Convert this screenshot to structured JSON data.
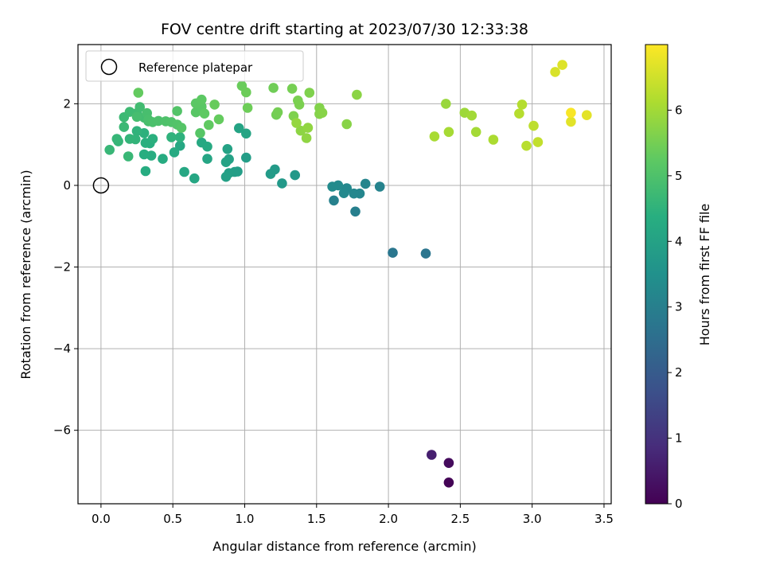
{
  "chart_data": {
    "type": "scatter",
    "title": "FOV centre drift starting at 2023/07/30 12:33:38",
    "xlabel": "Angular distance from reference (arcmin)",
    "ylabel": "Rotation from reference (arcmin)",
    "colorbar_label": "Hours from first FF file",
    "colormap": "viridis",
    "xlim": [
      -0.16,
      3.55
    ],
    "ylim": [
      -7.8,
      3.45
    ],
    "clim": [
      0,
      7
    ],
    "grid": true,
    "legend_position": "top-left",
    "xticks": [
      0.0,
      0.5,
      1.0,
      1.5,
      2.0,
      2.5,
      3.0,
      3.5
    ],
    "xtick_labels": [
      "0.0",
      "0.5",
      "1.0",
      "1.5",
      "2.0",
      "2.5",
      "3.0",
      "3.5"
    ],
    "yticks": [
      2,
      0,
      -2,
      -4,
      -6
    ],
    "ytick_labels": [
      "2",
      "0",
      "−2",
      "−4",
      "−6"
    ],
    "cticks": [
      0,
      1,
      2,
      3,
      4,
      5,
      6
    ],
    "ctick_labels": [
      "0",
      "1",
      "2",
      "3",
      "4",
      "5",
      "6"
    ],
    "reference": {
      "label": "Reference platepar",
      "x": 0.0,
      "y": 0.0
    },
    "points": [
      [
        2.42,
        -7.28,
        0.05
      ],
      [
        2.42,
        -6.8,
        0.2
      ],
      [
        2.3,
        -6.6,
        0.6
      ],
      [
        2.26,
        -1.67,
        2.7
      ],
      [
        2.03,
        -1.65,
        2.75
      ],
      [
        1.77,
        -0.64,
        3.0
      ],
      [
        1.62,
        -0.37,
        3.05
      ],
      [
        1.94,
        -0.03,
        3.1
      ],
      [
        1.84,
        0.04,
        3.15
      ],
      [
        1.8,
        -0.2,
        3.2
      ],
      [
        1.76,
        -0.2,
        3.22
      ],
      [
        1.71,
        -0.07,
        3.25
      ],
      [
        1.69,
        -0.19,
        3.28
      ],
      [
        1.65,
        0.0,
        3.3
      ],
      [
        1.61,
        -0.03,
        3.33
      ],
      [
        1.35,
        0.25,
        3.7
      ],
      [
        1.26,
        0.05,
        3.75
      ],
      [
        1.21,
        0.39,
        3.78
      ],
      [
        1.18,
        0.28,
        3.8
      ],
      [
        1.01,
        0.68,
        3.85
      ],
      [
        0.95,
        0.34,
        3.88
      ],
      [
        0.93,
        0.33,
        3.9
      ],
      [
        0.89,
        0.3,
        3.92
      ],
      [
        0.87,
        0.21,
        3.95
      ],
      [
        0.89,
        0.64,
        3.97
      ],
      [
        0.88,
        0.89,
        4.0
      ],
      [
        0.87,
        0.57,
        4.02
      ],
      [
        0.96,
        1.4,
        4.05
      ],
      [
        1.01,
        1.27,
        4.08
      ],
      [
        0.74,
        0.65,
        4.1
      ],
      [
        0.65,
        0.17,
        4.12
      ],
      [
        0.58,
        0.33,
        4.15
      ],
      [
        0.55,
        0.97,
        4.17
      ],
      [
        0.7,
        1.05,
        4.2
      ],
      [
        0.74,
        0.95,
        4.22
      ],
      [
        0.51,
        0.81,
        4.25
      ],
      [
        0.43,
        0.65,
        4.27
      ],
      [
        0.31,
        0.35,
        4.3
      ],
      [
        0.35,
        0.73,
        4.32
      ],
      [
        0.3,
        0.76,
        4.35
      ],
      [
        0.34,
        1.03,
        4.37
      ],
      [
        0.31,
        1.04,
        4.4
      ],
      [
        0.36,
        1.14,
        4.42
      ],
      [
        0.3,
        1.28,
        4.45
      ],
      [
        0.55,
        1.18,
        4.47
      ],
      [
        0.49,
        1.18,
        4.5
      ],
      [
        0.25,
        1.33,
        4.52
      ],
      [
        0.24,
        1.13,
        4.55
      ],
      [
        0.2,
        1.14,
        4.57
      ],
      [
        0.12,
        1.08,
        4.6
      ],
      [
        0.11,
        1.14,
        4.62
      ],
      [
        0.06,
        0.87,
        4.65
      ],
      [
        0.19,
        0.71,
        4.67
      ],
      [
        0.16,
        1.43,
        4.7
      ],
      [
        0.16,
        1.67,
        4.72
      ],
      [
        0.2,
        1.8,
        4.75
      ],
      [
        0.25,
        1.77,
        4.77
      ],
      [
        0.27,
        1.92,
        4.8
      ],
      [
        0.3,
        1.66,
        4.82
      ],
      [
        0.33,
        1.57,
        4.85
      ],
      [
        0.25,
        1.68,
        4.87
      ],
      [
        0.32,
        1.77,
        4.9
      ],
      [
        0.33,
        1.61,
        4.92
      ],
      [
        0.36,
        1.55,
        4.95
      ],
      [
        0.4,
        1.58,
        4.97
      ],
      [
        0.45,
        1.57,
        5.0
      ],
      [
        0.49,
        1.55,
        5.02
      ],
      [
        0.53,
        1.49,
        5.05
      ],
      [
        0.53,
        1.82,
        5.07
      ],
      [
        0.56,
        1.41,
        5.1
      ],
      [
        0.69,
        1.28,
        5.12
      ],
      [
        0.66,
        1.79,
        5.15
      ],
      [
        0.7,
        1.93,
        5.17
      ],
      [
        0.66,
        2.01,
        5.2
      ],
      [
        0.7,
        2.1,
        5.22
      ],
      [
        0.72,
        1.76,
        5.25
      ],
      [
        0.75,
        1.48,
        5.27
      ],
      [
        0.26,
        2.27,
        5.3
      ],
      [
        0.82,
        1.62,
        5.32
      ],
      [
        0.79,
        1.98,
        5.35
      ],
      [
        0.98,
        2.44,
        5.37
      ],
      [
        1.01,
        2.28,
        5.4
      ],
      [
        1.02,
        1.9,
        5.42
      ],
      [
        1.2,
        2.39,
        5.45
      ],
      [
        1.22,
        1.73,
        5.47
      ],
      [
        1.23,
        1.79,
        5.5
      ],
      [
        1.33,
        2.37,
        5.52
      ],
      [
        1.37,
        2.08,
        5.55
      ],
      [
        1.38,
        1.98,
        5.57
      ],
      [
        1.34,
        1.7,
        5.6
      ],
      [
        1.45,
        2.27,
        5.62
      ],
      [
        1.52,
        1.9,
        5.65
      ],
      [
        1.52,
        1.75,
        5.67
      ],
      [
        1.54,
        1.78,
        5.7
      ],
      [
        1.71,
        1.5,
        5.72
      ],
      [
        1.78,
        2.22,
        5.75
      ],
      [
        1.39,
        1.34,
        5.77
      ],
      [
        1.43,
        1.16,
        5.8
      ],
      [
        1.44,
        1.41,
        5.82
      ],
      [
        1.36,
        1.53,
        5.85
      ],
      [
        2.4,
        2.0,
        5.9
      ],
      [
        2.53,
        1.78,
        5.95
      ],
      [
        2.58,
        1.71,
        6.0
      ],
      [
        2.61,
        1.31,
        6.02
      ],
      [
        2.42,
        1.31,
        6.05
      ],
      [
        2.32,
        1.2,
        6.07
      ],
      [
        2.73,
        1.12,
        6.1
      ],
      [
        2.93,
        1.98,
        6.2
      ],
      [
        2.91,
        1.76,
        6.22
      ],
      [
        2.96,
        0.97,
        6.25
      ],
      [
        3.01,
        1.46,
        6.3
      ],
      [
        3.04,
        1.06,
        6.35
      ],
      [
        3.16,
        2.78,
        6.6
      ],
      [
        3.21,
        2.95,
        6.65
      ],
      [
        3.27,
        1.56,
        6.7
      ],
      [
        3.38,
        1.72,
        6.72
      ],
      [
        3.27,
        1.78,
        6.95
      ]
    ]
  }
}
